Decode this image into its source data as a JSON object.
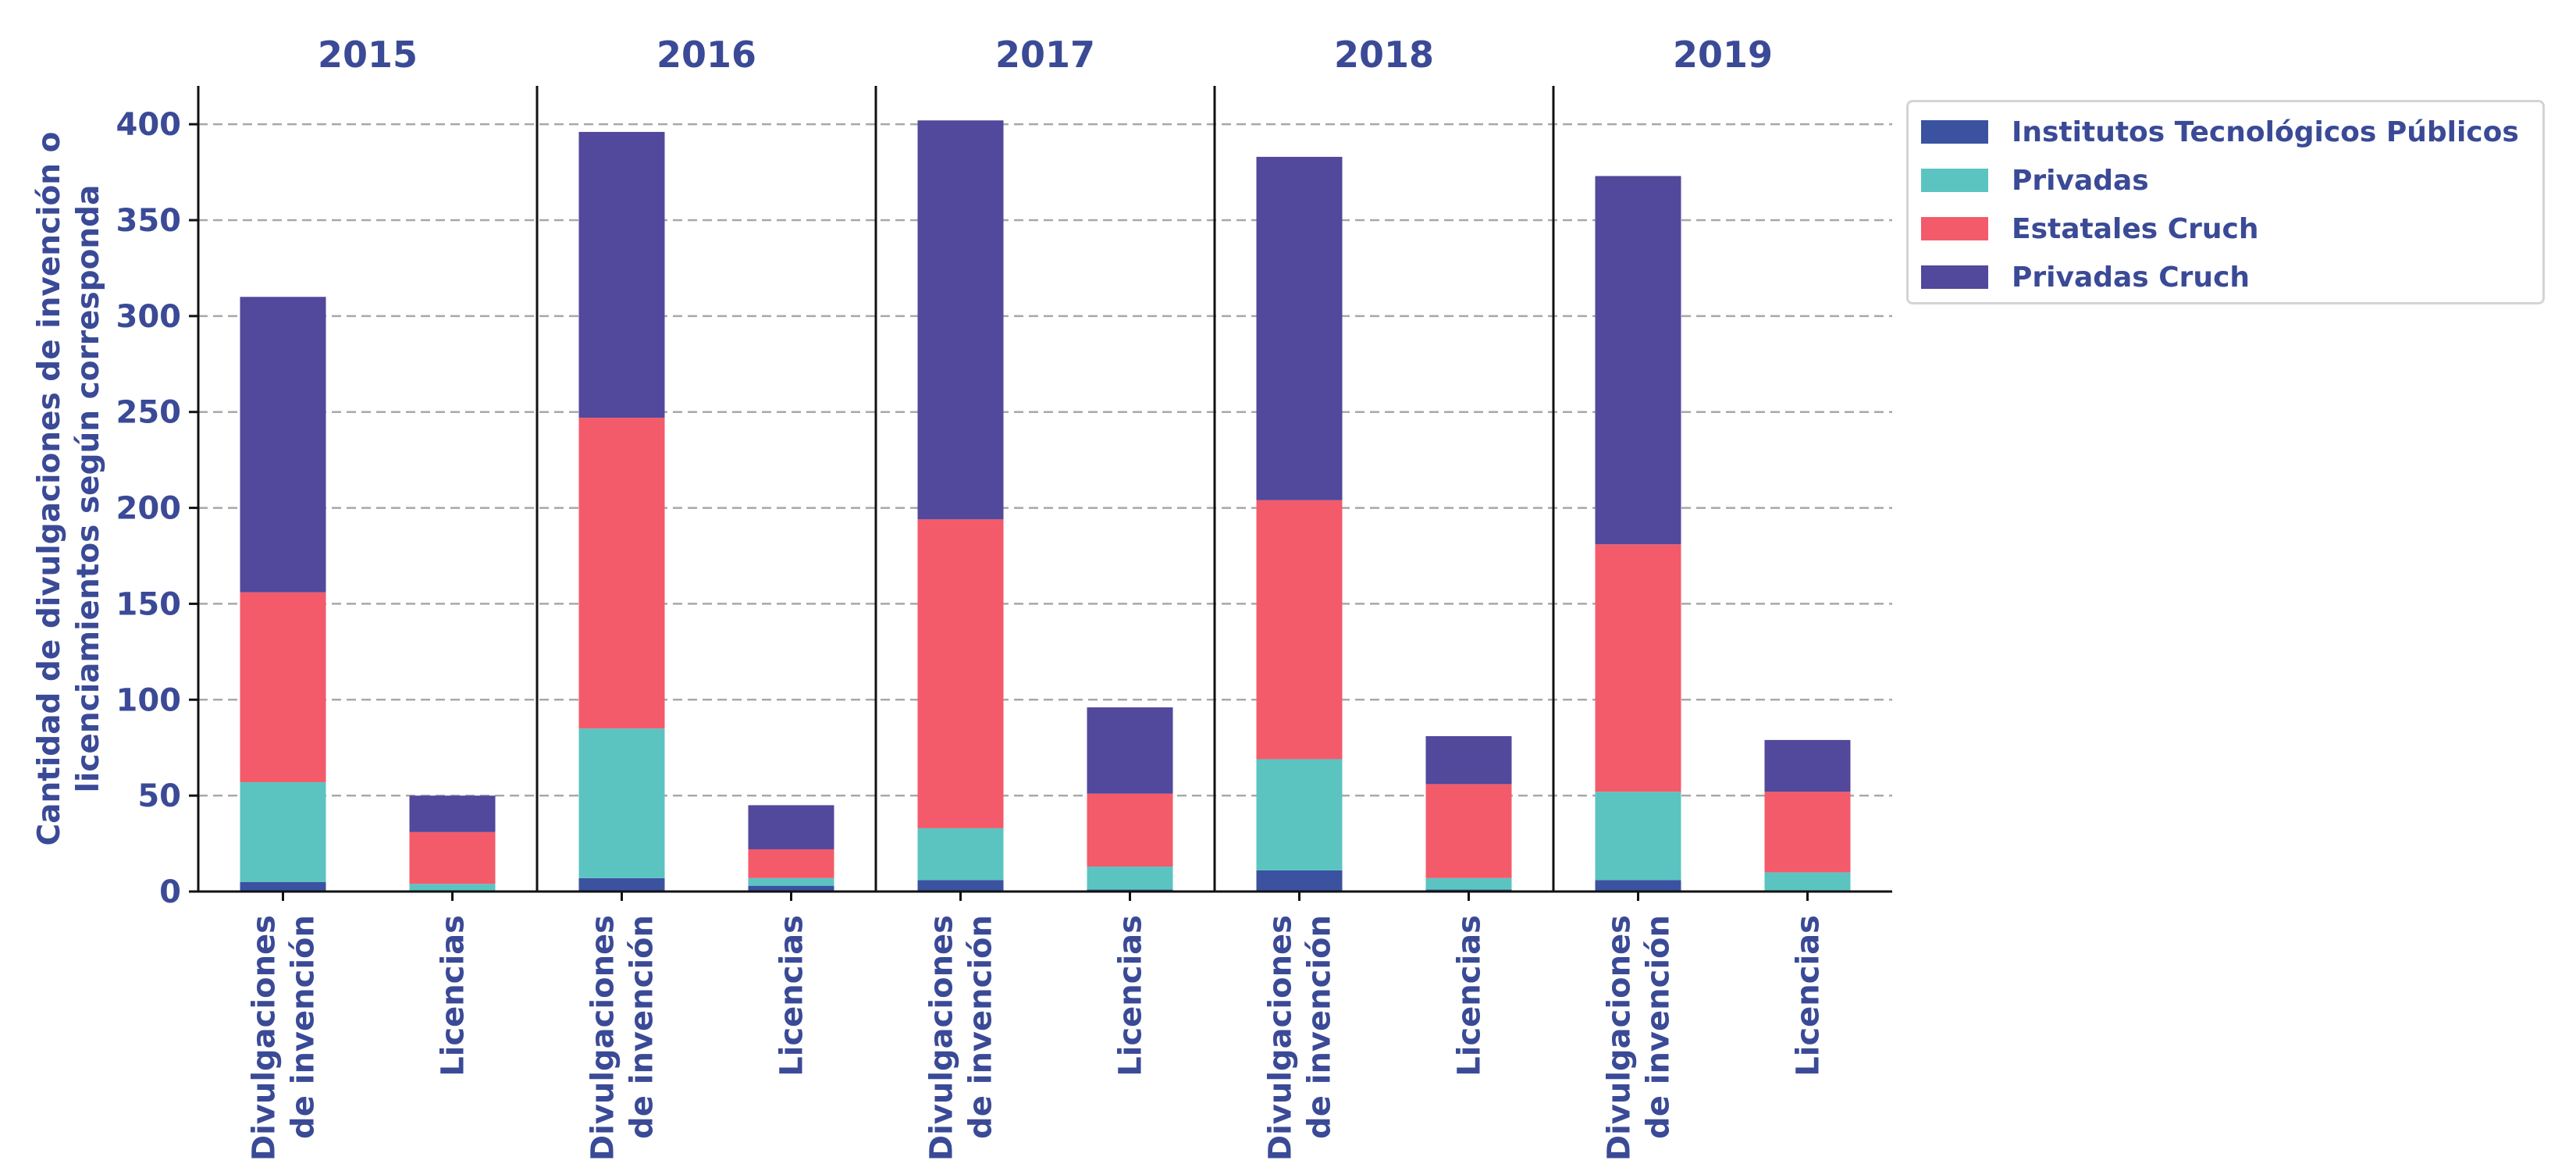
{
  "chart_data": {
    "type": "bar",
    "stacked": true,
    "ylabel": "Cantidad de divulgaciones de invención o licenciamientos según corresponda",
    "ylabel_lines": [
      "Cantidad de divulgaciones de invención o",
      "licenciamientos según corresponda"
    ],
    "ylim": [
      0,
      420
    ],
    "yticks": [
      "0",
      "50",
      "100",
      "150",
      "200",
      "250",
      "300",
      "350",
      "400"
    ],
    "grid": true,
    "legend_position": "top-right",
    "categories": [
      "Divulgaciones de invención",
      "Licencias"
    ],
    "category_lines": [
      [
        "Divulgaciones",
        "de invención"
      ],
      [
        "Licencias"
      ]
    ],
    "panels": [
      {
        "title": "2015",
        "series": [
          {
            "name": "Institutos Tecnológicos Públicos",
            "values": [
              5,
              0
            ]
          },
          {
            "name": "Privadas",
            "values": [
              52,
              4
            ]
          },
          {
            "name": "Estatales Cruch",
            "values": [
              99,
              27
            ]
          },
          {
            "name": "Privadas Cruch",
            "values": [
              154,
              19
            ]
          }
        ]
      },
      {
        "title": "2016",
        "series": [
          {
            "name": "Institutos Tecnológicos Públicos",
            "values": [
              7,
              3
            ]
          },
          {
            "name": "Privadas",
            "values": [
              78,
              4
            ]
          },
          {
            "name": "Estatales Cruch",
            "values": [
              162,
              15
            ]
          },
          {
            "name": "Privadas Cruch",
            "values": [
              149,
              23
            ]
          }
        ]
      },
      {
        "title": "2017",
        "series": [
          {
            "name": "Institutos Tecnológicos Públicos",
            "values": [
              6,
              1
            ]
          },
          {
            "name": "Privadas",
            "values": [
              27,
              12
            ]
          },
          {
            "name": "Estatales Cruch",
            "values": [
              161,
              38
            ]
          },
          {
            "name": "Privadas Cruch",
            "values": [
              208,
              45
            ]
          }
        ]
      },
      {
        "title": "2018",
        "series": [
          {
            "name": "Institutos Tecnológicos Públicos",
            "values": [
              11,
              1
            ]
          },
          {
            "name": "Privadas",
            "values": [
              58,
              6
            ]
          },
          {
            "name": "Estatales Cruch",
            "values": [
              135,
              49
            ]
          },
          {
            "name": "Privadas Cruch",
            "values": [
              179,
              25
            ]
          }
        ]
      },
      {
        "title": "2019",
        "series": [
          {
            "name": "Institutos Tecnológicos Públicos",
            "values": [
              6,
              0
            ]
          },
          {
            "name": "Privadas",
            "values": [
              46,
              10
            ]
          },
          {
            "name": "Estatales Cruch",
            "values": [
              129,
              42
            ]
          },
          {
            "name": "Privadas Cruch",
            "values": [
              192,
              27
            ]
          }
        ]
      }
    ]
  },
  "legend": {
    "items": [
      {
        "label": "Institutos Tecnológicos Públicos",
        "color": "#3a52a0"
      },
      {
        "label": "Privadas",
        "color": "#5bc4c1"
      },
      {
        "label": "Estatales Cruch",
        "color": "#f35b6a"
      },
      {
        "label": "Privadas Cruch",
        "color": "#52489c"
      }
    ]
  },
  "colors": {
    "text": "#3a4a96",
    "grid": "#a8a8a8",
    "axis": "#111111"
  }
}
